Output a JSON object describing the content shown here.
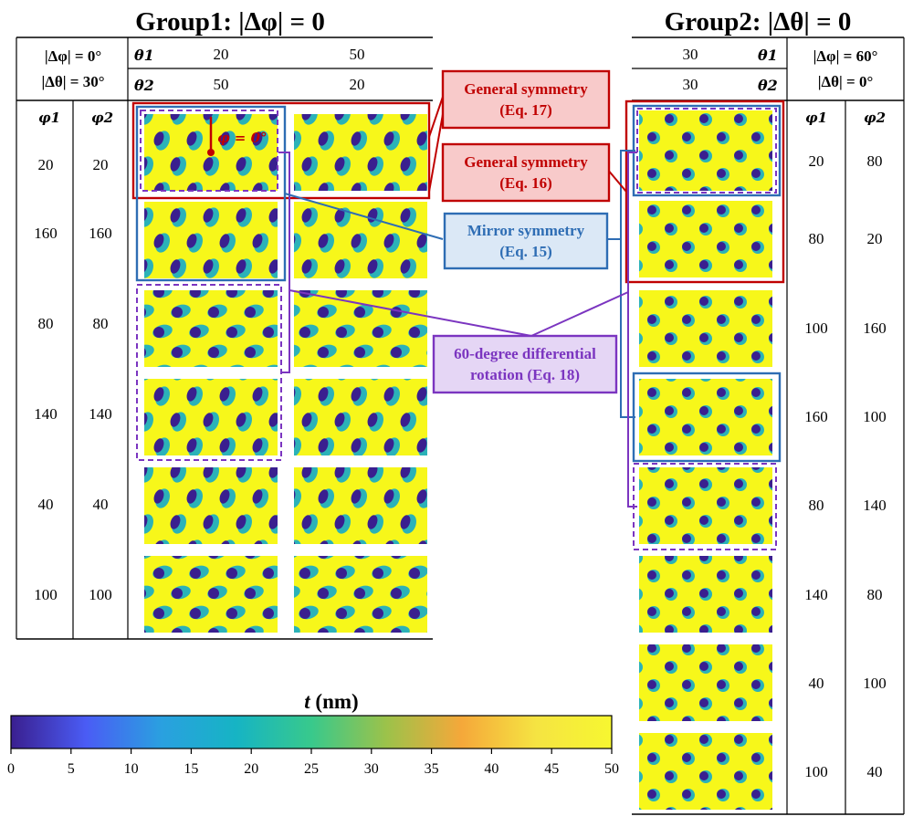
{
  "group1": {
    "title": "Group1: |Δφ| = 0",
    "header": {
      "cond1": "|Δφ| = 0°",
      "cond2": "|Δθ| = 30°",
      "theta1_label": "θ1",
      "theta2_label": "θ2",
      "theta1_values": [
        "20",
        "50"
      ],
      "theta2_values": [
        "50",
        "20"
      ],
      "phi1_label": "φ1",
      "phi2_label": "φ2"
    },
    "rows": [
      {
        "phi1": "20",
        "phi2": "20"
      },
      {
        "phi1": "160",
        "phi2": "160"
      },
      {
        "phi1": "80",
        "phi2": "80"
      },
      {
        "phi1": "140",
        "phi2": "140"
      },
      {
        "phi1": "40",
        "phi2": "40"
      },
      {
        "phi1": "100",
        "phi2": "100"
      }
    ],
    "phi_zero_label": "φ = 0°"
  },
  "group2": {
    "title": "Group2: |Δθ| = 0",
    "header": {
      "cond1": "|Δφ| = 60°",
      "cond2": "|Δθ| = 0°",
      "theta1_label": "θ1",
      "theta2_label": "θ2",
      "theta1_value": "30",
      "theta2_value": "30",
      "phi1_label": "φ1",
      "phi2_label": "φ2"
    },
    "rows": [
      {
        "phi1": "20",
        "phi2": "80"
      },
      {
        "phi1": "80",
        "phi2": "20"
      },
      {
        "phi1": "100",
        "phi2": "160"
      },
      {
        "phi1": "160",
        "phi2": "100"
      },
      {
        "phi1": "80",
        "phi2": "140"
      },
      {
        "phi1": "140",
        "phi2": "80"
      },
      {
        "phi1": "40",
        "phi2": "100"
      },
      {
        "phi1": "100",
        "phi2": "40"
      }
    ]
  },
  "callouts": [
    {
      "line1": "General symmetry",
      "line2": "(Eq. 17)",
      "color": "#c00000",
      "fill": "#f8caca"
    },
    {
      "line1": "General symmetry",
      "line2": "(Eq. 16)",
      "color": "#c00000",
      "fill": "#f8caca"
    },
    {
      "line1": "Mirror symmetry",
      "line2": "(Eq. 15)",
      "color": "#2e6db4",
      "fill": "#dbe8f6"
    },
    {
      "line1": "60-degree differential",
      "line2": "rotation (Eq. 18)",
      "color": "#7b35c0",
      "fill": "#e5d6f5"
    }
  ],
  "colorbar": {
    "title_symbol": "t",
    "title_unit": " (nm)",
    "ticks": [
      "0",
      "5",
      "10",
      "15",
      "20",
      "25",
      "30",
      "35",
      "40",
      "45",
      "50"
    ],
    "range": [
      0,
      50
    ],
    "stops": [
      "#3a1f8f",
      "#4a5cf5",
      "#2aa0e0",
      "#16b4c4",
      "#38c98c",
      "#9cc24a",
      "#f5a83a",
      "#f5e442",
      "#f7f730"
    ]
  }
}
